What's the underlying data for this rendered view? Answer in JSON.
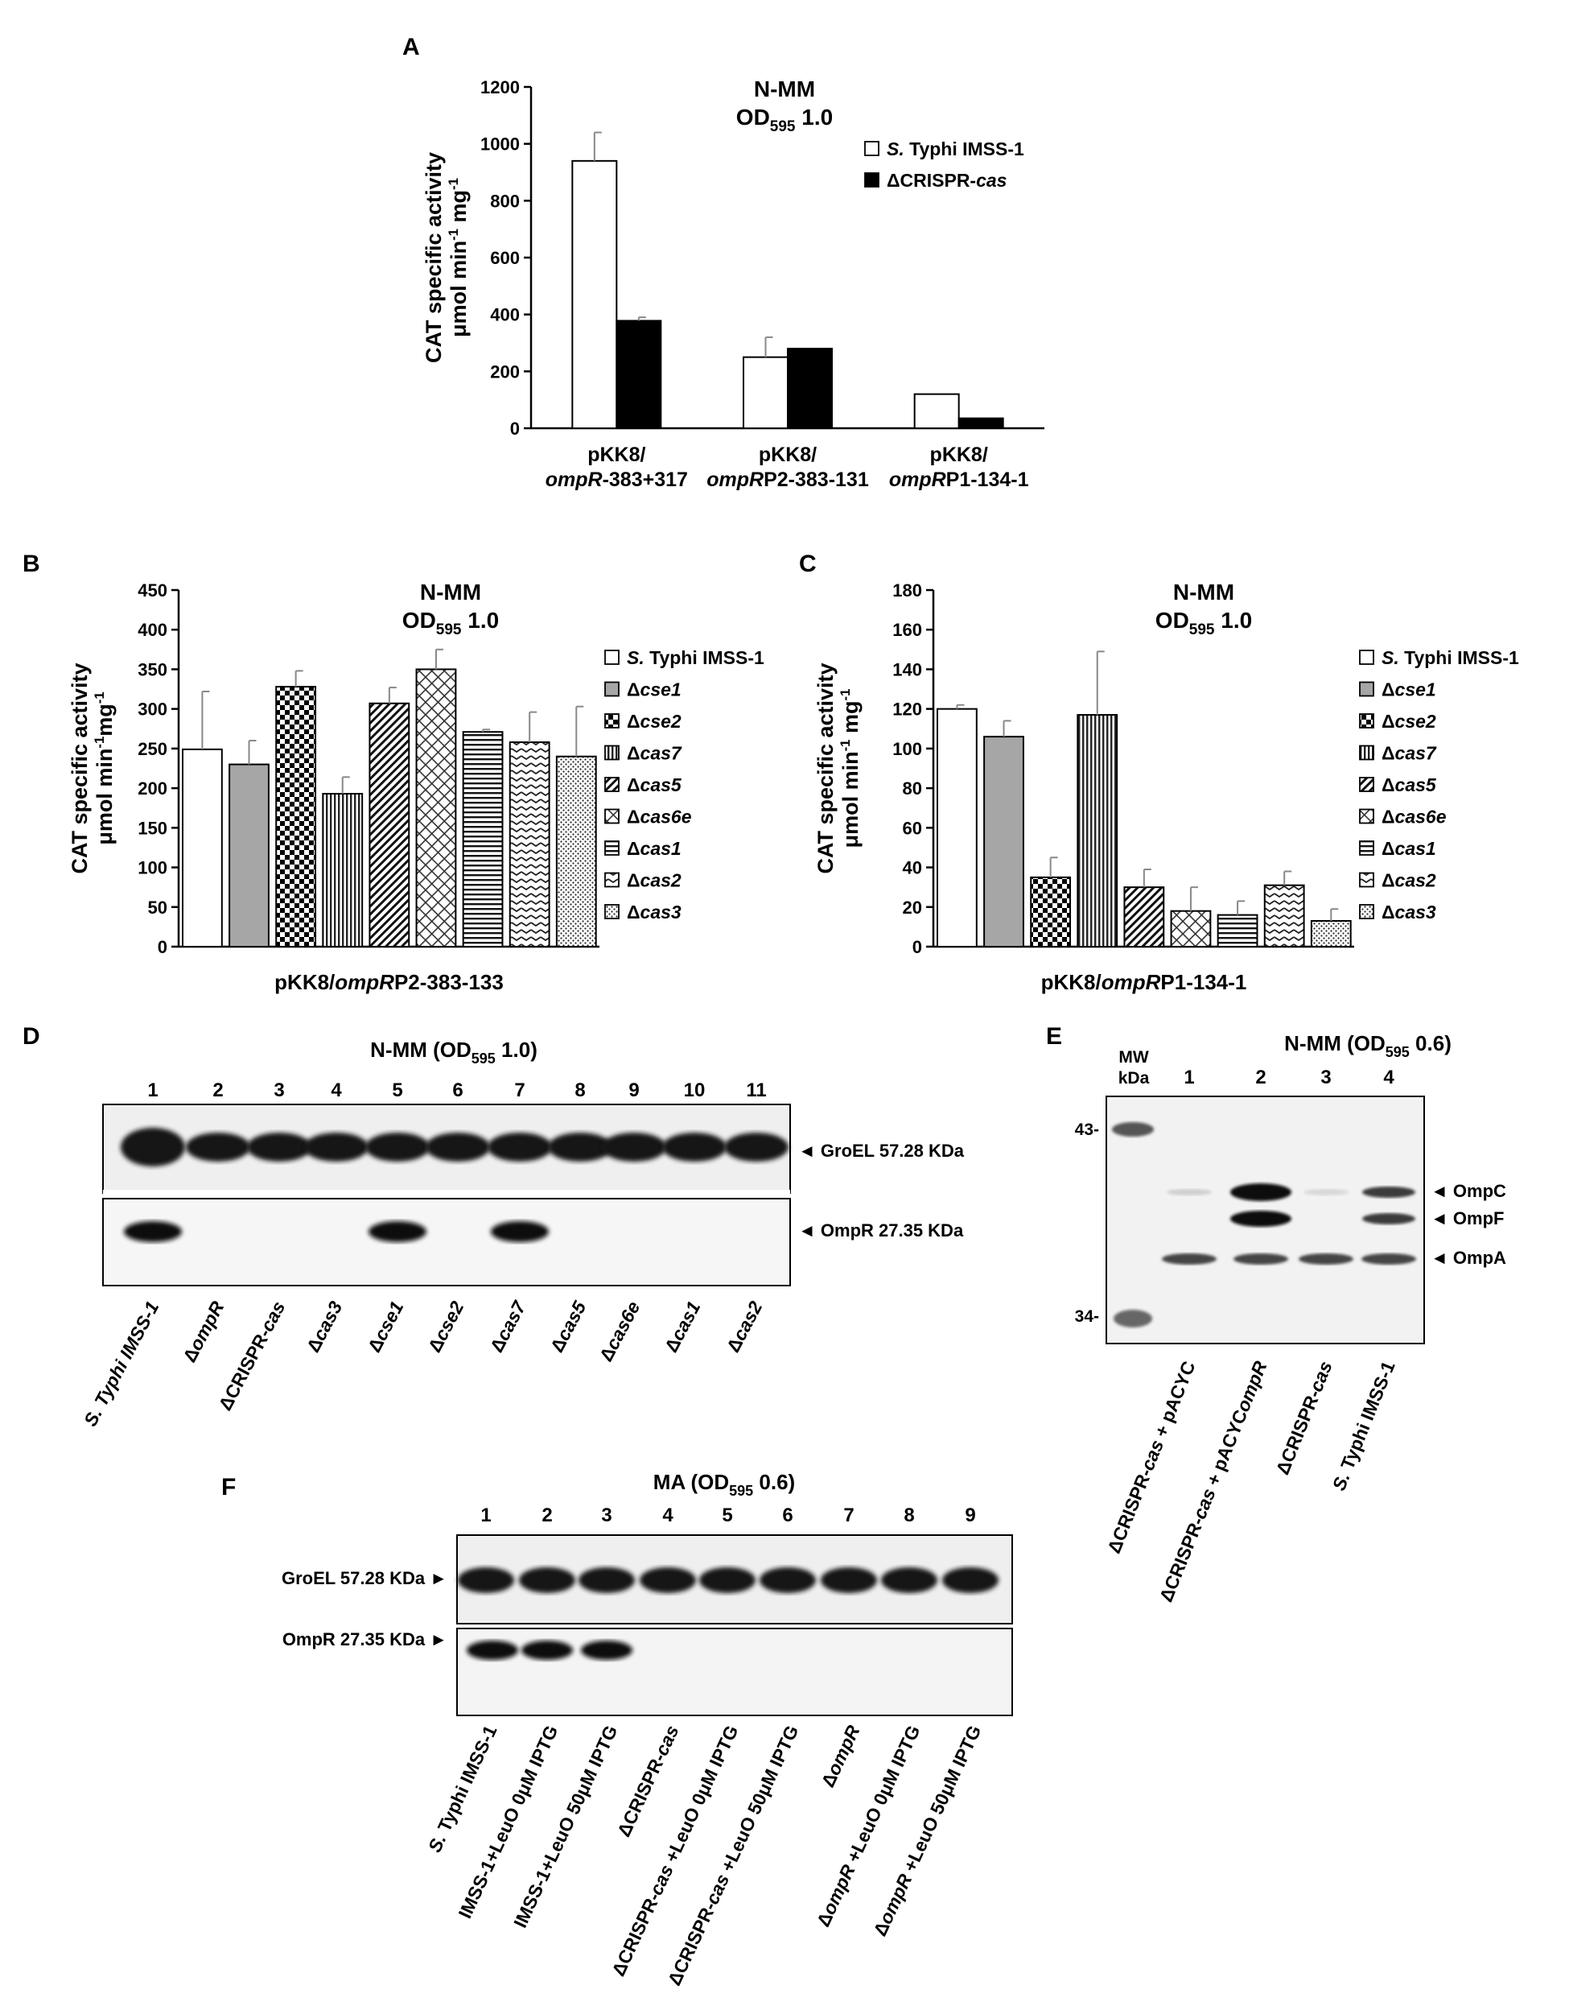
{
  "panels": {
    "A": "A",
    "B": "B",
    "C": "C",
    "D": "D",
    "E": "E",
    "F": "F"
  },
  "chart_data": [
    {
      "panel": "A",
      "type": "bar",
      "title": "N-MM",
      "subtitle": "OD595 1.0",
      "title_parts": {
        "od": "OD",
        "sub": "595",
        "val": "1.0"
      },
      "ylabel": "CAT specific activity",
      "ylabel2": "μmol min-1 mg-1",
      "ylabel2_parts": {
        "a": "μmol min",
        "e1": "-1",
        "b": " mg",
        "e2": "-1"
      },
      "ylim": [
        0,
        1200
      ],
      "yticks": [
        0,
        200,
        400,
        600,
        800,
        1000,
        1200
      ],
      "categories": [
        {
          "line1": "pKK8/",
          "line2_italic": "ompR",
          "line2_rest": "-383+317"
        },
        {
          "line1": "pKK8/",
          "line2_italic": "ompR",
          "line2_rest": "P2-383-131"
        },
        {
          "line1": "pKK8/",
          "line2_italic": "ompR",
          "line2_rest": "P1-134-1"
        }
      ],
      "series": [
        {
          "name": "S. Typhi IMSS-1",
          "name_italic": "S.",
          "name_rest": " Typhi IMSS-1",
          "fill": "#ffffff",
          "values": [
            940,
            250,
            120
          ],
          "errors": [
            100,
            70,
            0
          ]
        },
        {
          "name": "ΔCRISPR-cas",
          "name_rest": "ΔCRISPR-",
          "name_italic_end": "cas",
          "fill": "#000000",
          "values": [
            378,
            280,
            35
          ],
          "errors": [
            12,
            0,
            0
          ]
        }
      ],
      "legend_position": "right",
      "grid": false
    },
    {
      "panel": "B",
      "type": "bar",
      "title": "N-MM",
      "subtitle": "OD595 1.0",
      "title_parts": {
        "od": "OD",
        "sub": "595",
        "val": "1.0"
      },
      "ylabel": "CAT specific activity",
      "ylabel2": "μmol min-1mg-1",
      "ylabel2_parts": {
        "a": "μmol min",
        "e1": "-1",
        "b": "mg",
        "e2": "-1"
      },
      "xlabel": "pKK8/ompRP2-383-133",
      "xlabel_parts": {
        "pre": "pKK8/",
        "it": "ompR",
        "post": "P2-383-133"
      },
      "ylim": [
        0,
        450
      ],
      "yticks": [
        0,
        50,
        100,
        150,
        200,
        250,
        300,
        350,
        400,
        450
      ],
      "series": [
        {
          "name": "S. Typhi IMSS-1",
          "pattern": "white",
          "value": 249,
          "error": 73
        },
        {
          "name": "Δcse1",
          "pattern": "gray",
          "value": 230,
          "error": 30
        },
        {
          "name": "Δcse2",
          "pattern": "checker",
          "value": 328,
          "error": 20
        },
        {
          "name": "Δcas7",
          "pattern": "vlines",
          "value": 193,
          "error": 21
        },
        {
          "name": "Δcas5",
          "pattern": "diag",
          "value": 307,
          "error": 20
        },
        {
          "name": "Δcas6e",
          "pattern": "crosshatch",
          "value": 350,
          "error": 25
        },
        {
          "name": "Δcas1",
          "pattern": "hlines",
          "value": 271,
          "error": 3
        },
        {
          "name": "Δcas2",
          "pattern": "zigzag",
          "value": 258,
          "error": 38
        },
        {
          "name": "Δcas3",
          "pattern": "dots",
          "value": 240,
          "error": 63
        }
      ],
      "legend_position": "right",
      "grid": false
    },
    {
      "panel": "C",
      "type": "bar",
      "title": "N-MM",
      "subtitle": "OD595 1.0",
      "title_parts": {
        "od": "OD",
        "sub": "595",
        "val": "1.0"
      },
      "ylabel": "CAT specific activity",
      "ylabel2": "μmol min-1 mg-1",
      "ylabel2_parts": {
        "a": "μmol min",
        "e1": "-1",
        "b": " mg",
        "e2": "-1"
      },
      "xlabel": "pKK8/ompRP1-134-1",
      "xlabel_parts": {
        "pre": "pKK8/",
        "it": "ompR",
        "post": "P1-134-1"
      },
      "ylim": [
        0,
        180
      ],
      "yticks": [
        0,
        20,
        40,
        60,
        80,
        100,
        120,
        140,
        160,
        180
      ],
      "series": [
        {
          "name": "S. Typhi IMSS-1",
          "pattern": "white",
          "value": 120,
          "error": 2
        },
        {
          "name": "Δcse1",
          "pattern": "gray",
          "value": 106,
          "error": 8
        },
        {
          "name": "Δcse2",
          "pattern": "checker",
          "value": 35,
          "error": 10
        },
        {
          "name": "Δcas7",
          "pattern": "vlines",
          "value": 117,
          "error": 32
        },
        {
          "name": "Δcas5",
          "pattern": "diag",
          "value": 30,
          "error": 9
        },
        {
          "name": "Δcas6e",
          "pattern": "crosshatch",
          "value": 18,
          "error": 12
        },
        {
          "name": "Δcas1",
          "pattern": "hlines",
          "value": 16,
          "error": 7
        },
        {
          "name": "Δcas2",
          "pattern": "zigzag",
          "value": 31,
          "error": 7
        },
        {
          "name": "Δcas3",
          "pattern": "dots",
          "value": 13,
          "error": 6
        }
      ],
      "legend_position": "right",
      "grid": false
    }
  ],
  "blots": {
    "D": {
      "title": "N-MM (OD595 1.0)",
      "title_parts": {
        "pre": "N-MM (OD",
        "sub": "595",
        "post": " 1.0)"
      },
      "lanes": [
        "1",
        "2",
        "3",
        "4",
        "5",
        "6",
        "7",
        "8",
        "9",
        "10",
        "11"
      ],
      "band_labels": [
        "GroEL 57.28 KDa",
        "OmpR 27.35 KDa"
      ],
      "ompr_present": [
        1,
        0,
        0,
        0,
        1,
        0,
        1,
        0,
        0,
        0,
        0
      ],
      "samples": [
        {
          "pre": "",
          "it": "S.",
          "post": " Typhi IMSS-1"
        },
        {
          "pre": "Δ",
          "it": "ompR",
          "post": ""
        },
        {
          "pre": "ΔCRISPR-",
          "it": "cas",
          "post": ""
        },
        {
          "pre": "Δ",
          "it": "cas3",
          "post": ""
        },
        {
          "pre": "Δ",
          "it": "cse1",
          "post": ""
        },
        {
          "pre": "Δ",
          "it": "cse2",
          "post": ""
        },
        {
          "pre": "Δ",
          "it": "cas7",
          "post": ""
        },
        {
          "pre": "Δ",
          "it": "cas5",
          "post": ""
        },
        {
          "pre": "Δ",
          "it": "cas6e",
          "post": ""
        },
        {
          "pre": "Δ",
          "it": "cas1",
          "post": ""
        },
        {
          "pre": "Δ",
          "it": "cas2",
          "post": ""
        }
      ]
    },
    "E": {
      "title": "N-MM (OD595 0.6)",
      "title_parts": {
        "pre": "N-MM (OD",
        "sub": "595",
        "post": " 0.6)"
      },
      "mw_label": "MW",
      "kda_label": "kDa",
      "lanes": [
        "1",
        "2",
        "3",
        "4"
      ],
      "markers": [
        "43-",
        "34-"
      ],
      "band_labels": [
        "OmpC",
        "OmpF",
        "OmpA"
      ],
      "samples": [
        {
          "pre": "ΔCRISPR-",
          "it": "cas",
          "post": " + pACYC"
        },
        {
          "pre": "ΔCRISPR-",
          "it": "cas",
          "post": " + pACYC",
          "it2": "ompR"
        },
        {
          "pre": "ΔCRISPR-",
          "it": "cas",
          "post": ""
        },
        {
          "pre": "",
          "it": "S.",
          "post": " Typhi IMSS-1"
        }
      ]
    },
    "F": {
      "title": "MA (OD595 0.6)",
      "title_parts": {
        "pre": "MA (OD",
        "sub": "595",
        "post": " 0.6)"
      },
      "lanes": [
        "1",
        "2",
        "3",
        "4",
        "5",
        "6",
        "7",
        "8",
        "9"
      ],
      "band_labels": [
        "GroEL 57.28 KDa",
        "OmpR 27.35 KDa"
      ],
      "ompr_present": [
        1,
        1,
        1,
        0,
        0,
        0,
        0,
        0,
        0
      ],
      "samples": [
        {
          "pre": "",
          "it": "S.",
          "post": " Typhi IMSS-1"
        },
        {
          "pre": "IMSS-1+LeuO 0μM IPTG",
          "it": "",
          "post": ""
        },
        {
          "pre": "IMSS-1+LeuO 50μM IPTG",
          "it": "",
          "post": ""
        },
        {
          "pre": "ΔCRISPR-",
          "it": "cas",
          "post": ""
        },
        {
          "pre": "ΔCRISPR-",
          "it": "cas",
          "post": " +LeuO 0μM IPTG"
        },
        {
          "pre": "ΔCRISPR-",
          "it": "cas",
          "post": " +LeuO 50μM IPTG"
        },
        {
          "pre": "Δ",
          "it": "ompR",
          "post": ""
        },
        {
          "pre": "Δ",
          "it": "ompR",
          "post": " +LeuO 0μM IPTG"
        },
        {
          "pre": "Δ",
          "it": "ompR",
          "post": " +LeuO 50μM IPTG"
        }
      ]
    }
  }
}
